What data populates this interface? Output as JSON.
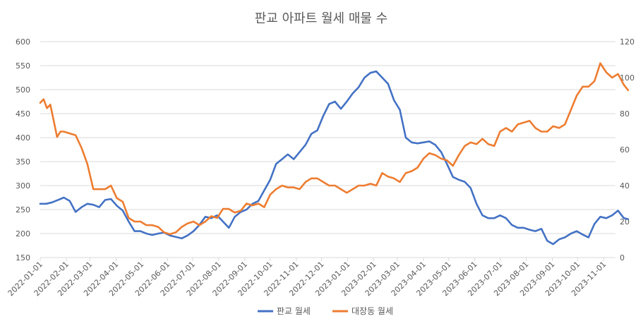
{
  "chart_data": {
    "type": "line",
    "title": "판교 아파트 월세 매물 수",
    "y_left": {
      "range": [
        150,
        600
      ],
      "ticks": [
        150,
        200,
        250,
        300,
        350,
        400,
        450,
        500,
        550,
        600
      ]
    },
    "y_right": {
      "range": [
        0,
        120
      ],
      "ticks": [
        0,
        20,
        40,
        60,
        80,
        100,
        120
      ]
    },
    "x_ticks": [
      "2022-01-01",
      "2022-02-01",
      "2022-03-01",
      "2022-04-01",
      "2022-05-01",
      "2022-06-01",
      "2022-07-01",
      "2022-08-01",
      "2022-09-01",
      "2022-10-01",
      "2022-11-01",
      "2022-12-01",
      "2023-01-01",
      "2023-02-01",
      "2023-03-01",
      "2023-04-01",
      "2023-05-01",
      "2023-06-01",
      "2023-07-01",
      "2023-08-01",
      "2023-09-01",
      "2023-10-01",
      "2023-11-01"
    ],
    "x_range": [
      "2022-01-01",
      "2023-11-15"
    ],
    "legend_position": "bottom",
    "grid": true,
    "series": [
      {
        "name": "판교 월세",
        "axis": "left",
        "color": "#4472c4",
        "points": [
          [
            "2022-01-01",
            262
          ],
          [
            "2022-01-08",
            262
          ],
          [
            "2022-01-15",
            265
          ],
          [
            "2022-01-22",
            270
          ],
          [
            "2022-01-29",
            275
          ],
          [
            "2022-02-05",
            268
          ],
          [
            "2022-02-12",
            245
          ],
          [
            "2022-02-19",
            255
          ],
          [
            "2022-02-26",
            262
          ],
          [
            "2022-03-05",
            260
          ],
          [
            "2022-03-12",
            255
          ],
          [
            "2022-03-19",
            270
          ],
          [
            "2022-03-26",
            272
          ],
          [
            "2022-04-02",
            258
          ],
          [
            "2022-04-09",
            248
          ],
          [
            "2022-04-16",
            225
          ],
          [
            "2022-04-23",
            205
          ],
          [
            "2022-04-30",
            205
          ],
          [
            "2022-05-07",
            200
          ],
          [
            "2022-05-14",
            197
          ],
          [
            "2022-05-21",
            200
          ],
          [
            "2022-05-28",
            202
          ],
          [
            "2022-06-04",
            196
          ],
          [
            "2022-06-11",
            193
          ],
          [
            "2022-06-18",
            190
          ],
          [
            "2022-06-25",
            196
          ],
          [
            "2022-07-02",
            205
          ],
          [
            "2022-07-09",
            218
          ],
          [
            "2022-07-16",
            235
          ],
          [
            "2022-07-23",
            232
          ],
          [
            "2022-07-30",
            238
          ],
          [
            "2022-08-06",
            225
          ],
          [
            "2022-08-13",
            212
          ],
          [
            "2022-08-20",
            235
          ],
          [
            "2022-08-27",
            245
          ],
          [
            "2022-09-03",
            250
          ],
          [
            "2022-09-10",
            262
          ],
          [
            "2022-09-17",
            268
          ],
          [
            "2022-09-24",
            290
          ],
          [
            "2022-10-01",
            312
          ],
          [
            "2022-10-08",
            345
          ],
          [
            "2022-10-15",
            355
          ],
          [
            "2022-10-22",
            365
          ],
          [
            "2022-10-29",
            355
          ],
          [
            "2022-11-05",
            370
          ],
          [
            "2022-11-12",
            385
          ],
          [
            "2022-11-19",
            408
          ],
          [
            "2022-11-26",
            415
          ],
          [
            "2022-12-03",
            445
          ],
          [
            "2022-12-10",
            470
          ],
          [
            "2022-12-17",
            475
          ],
          [
            "2022-12-24",
            460
          ],
          [
            "2022-12-31",
            475
          ],
          [
            "2023-01-07",
            492
          ],
          [
            "2023-01-14",
            505
          ],
          [
            "2023-01-21",
            525
          ],
          [
            "2023-01-28",
            535
          ],
          [
            "2023-02-04",
            538
          ],
          [
            "2023-02-11",
            525
          ],
          [
            "2023-02-18",
            512
          ],
          [
            "2023-02-25",
            478
          ],
          [
            "2023-03-04",
            458
          ],
          [
            "2023-03-11",
            400
          ],
          [
            "2023-03-18",
            390
          ],
          [
            "2023-03-25",
            388
          ],
          [
            "2023-04-01",
            390
          ],
          [
            "2023-04-08",
            392
          ],
          [
            "2023-04-15",
            385
          ],
          [
            "2023-04-22",
            370
          ],
          [
            "2023-04-29",
            345
          ],
          [
            "2023-05-06",
            318
          ],
          [
            "2023-05-13",
            312
          ],
          [
            "2023-05-20",
            308
          ],
          [
            "2023-05-27",
            295
          ],
          [
            "2023-06-03",
            262
          ],
          [
            "2023-06-10",
            238
          ],
          [
            "2023-06-17",
            232
          ],
          [
            "2023-06-24",
            232
          ],
          [
            "2023-07-01",
            238
          ],
          [
            "2023-07-08",
            232
          ],
          [
            "2023-07-15",
            218
          ],
          [
            "2023-07-22",
            212
          ],
          [
            "2023-07-29",
            212
          ],
          [
            "2023-08-05",
            208
          ],
          [
            "2023-08-12",
            205
          ],
          [
            "2023-08-19",
            210
          ],
          [
            "2023-08-26",
            185
          ],
          [
            "2023-09-02",
            178
          ],
          [
            "2023-09-09",
            188
          ],
          [
            "2023-09-16",
            192
          ],
          [
            "2023-09-23",
            200
          ],
          [
            "2023-09-30",
            205
          ],
          [
            "2023-10-07",
            198
          ],
          [
            "2023-10-14",
            192
          ],
          [
            "2023-10-21",
            220
          ],
          [
            "2023-10-28",
            235
          ],
          [
            "2023-11-04",
            232
          ],
          [
            "2023-11-11",
            238
          ],
          [
            "2023-11-18",
            248
          ],
          [
            "2023-11-25",
            232
          ],
          [
            "2023-11-30",
            230
          ]
        ]
      },
      {
        "name": "대장동 월세",
        "axis": "right",
        "color": "#ed7d31",
        "points": [
          [
            "2022-01-01",
            86
          ],
          [
            "2022-01-05",
            88
          ],
          [
            "2022-01-09",
            83
          ],
          [
            "2022-01-13",
            85
          ],
          [
            "2022-01-17",
            76
          ],
          [
            "2022-01-21",
            67
          ],
          [
            "2022-01-25",
            70
          ],
          [
            "2022-01-29",
            70
          ],
          [
            "2022-02-05",
            69
          ],
          [
            "2022-02-12",
            68
          ],
          [
            "2022-02-19",
            61
          ],
          [
            "2022-02-26",
            52
          ],
          [
            "2022-03-05",
            38
          ],
          [
            "2022-03-12",
            38
          ],
          [
            "2022-03-19",
            38
          ],
          [
            "2022-03-26",
            40
          ],
          [
            "2022-04-02",
            33
          ],
          [
            "2022-04-09",
            31
          ],
          [
            "2022-04-16",
            22
          ],
          [
            "2022-04-23",
            20
          ],
          [
            "2022-04-30",
            20
          ],
          [
            "2022-05-07",
            18
          ],
          [
            "2022-05-14",
            18
          ],
          [
            "2022-05-21",
            17
          ],
          [
            "2022-05-28",
            14
          ],
          [
            "2022-06-04",
            13
          ],
          [
            "2022-06-11",
            14
          ],
          [
            "2022-06-18",
            17
          ],
          [
            "2022-06-25",
            19
          ],
          [
            "2022-07-02",
            20
          ],
          [
            "2022-07-09",
            18
          ],
          [
            "2022-07-16",
            20
          ],
          [
            "2022-07-23",
            23
          ],
          [
            "2022-07-30",
            22
          ],
          [
            "2022-08-06",
            27
          ],
          [
            "2022-08-13",
            27
          ],
          [
            "2022-08-20",
            25
          ],
          [
            "2022-08-27",
            26
          ],
          [
            "2022-09-03",
            30
          ],
          [
            "2022-09-10",
            29
          ],
          [
            "2022-09-17",
            30
          ],
          [
            "2022-09-24",
            28
          ],
          [
            "2022-10-01",
            35
          ],
          [
            "2022-10-08",
            38
          ],
          [
            "2022-10-15",
            40
          ],
          [
            "2022-10-22",
            39
          ],
          [
            "2022-10-29",
            39
          ],
          [
            "2022-11-05",
            38
          ],
          [
            "2022-11-12",
            42
          ],
          [
            "2022-11-19",
            44
          ],
          [
            "2022-11-26",
            44
          ],
          [
            "2022-12-03",
            42
          ],
          [
            "2022-12-10",
            40
          ],
          [
            "2022-12-17",
            40
          ],
          [
            "2022-12-24",
            38
          ],
          [
            "2022-12-31",
            36
          ],
          [
            "2023-01-07",
            38
          ],
          [
            "2023-01-14",
            40
          ],
          [
            "2023-01-21",
            40
          ],
          [
            "2023-01-28",
            41
          ],
          [
            "2023-02-04",
            40
          ],
          [
            "2023-02-11",
            47
          ],
          [
            "2023-02-18",
            45
          ],
          [
            "2023-02-25",
            44
          ],
          [
            "2023-03-04",
            42
          ],
          [
            "2023-03-11",
            47
          ],
          [
            "2023-03-18",
            48
          ],
          [
            "2023-03-25",
            50
          ],
          [
            "2023-04-01",
            55
          ],
          [
            "2023-04-08",
            58
          ],
          [
            "2023-04-15",
            57
          ],
          [
            "2023-04-22",
            55
          ],
          [
            "2023-04-29",
            54
          ],
          [
            "2023-05-06",
            51
          ],
          [
            "2023-05-13",
            57
          ],
          [
            "2023-05-20",
            62
          ],
          [
            "2023-05-27",
            64
          ],
          [
            "2023-06-03",
            63
          ],
          [
            "2023-06-10",
            66
          ],
          [
            "2023-06-17",
            63
          ],
          [
            "2023-06-24",
            62
          ],
          [
            "2023-07-01",
            70
          ],
          [
            "2023-07-08",
            72
          ],
          [
            "2023-07-15",
            70
          ],
          [
            "2023-07-22",
            74
          ],
          [
            "2023-07-29",
            75
          ],
          [
            "2023-08-05",
            76
          ],
          [
            "2023-08-12",
            72
          ],
          [
            "2023-08-19",
            70
          ],
          [
            "2023-08-26",
            70
          ],
          [
            "2023-09-02",
            73
          ],
          [
            "2023-09-09",
            72
          ],
          [
            "2023-09-16",
            74
          ],
          [
            "2023-09-23",
            82
          ],
          [
            "2023-09-30",
            90
          ],
          [
            "2023-10-07",
            95
          ],
          [
            "2023-10-14",
            95
          ],
          [
            "2023-10-21",
            98
          ],
          [
            "2023-10-28",
            108
          ],
          [
            "2023-11-04",
            103
          ],
          [
            "2023-11-11",
            100
          ],
          [
            "2023-11-18",
            102
          ],
          [
            "2023-11-25",
            96
          ],
          [
            "2023-11-30",
            93
          ]
        ]
      }
    ]
  }
}
